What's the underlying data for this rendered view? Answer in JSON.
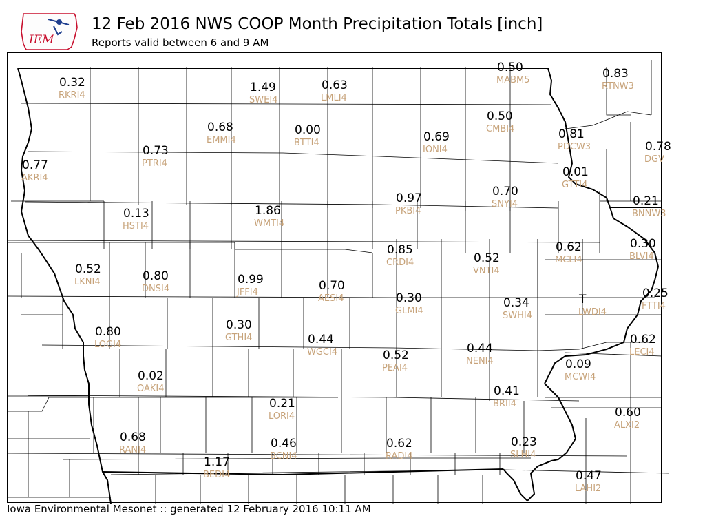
{
  "header": {
    "logo_text": "IEM",
    "title": "12 Feb 2016 NWS COOP Month Precipitation Totals [inch]",
    "subtitle": "Reports valid between 6 and 9 AM"
  },
  "footer": {
    "text": "Iowa Environmental Mesonet :: generated 12 February 2016 10:11 AM"
  },
  "colors": {
    "value_text": "#000000",
    "station_id_text": "#c7a37a",
    "county_lines": "#000000",
    "logo_red": "#c8102e",
    "logo_blue": "#1f3f8f"
  },
  "stations": [
    {
      "id": "RKRI4",
      "value": "0.32"
    },
    {
      "id": "SWEI4",
      "value": "1.49"
    },
    {
      "id": "LMLI4",
      "value": "0.63"
    },
    {
      "id": "MABM5",
      "value": "0.50"
    },
    {
      "id": "RTNW3",
      "value": "0.83"
    },
    {
      "id": "CMBI4",
      "value": "0.50"
    },
    {
      "id": "EMMI4",
      "value": "0.68"
    },
    {
      "id": "BTTI4",
      "value": "0.00"
    },
    {
      "id": "IONI4",
      "value": "0.69"
    },
    {
      "id": "PDCW3",
      "value": "0.81"
    },
    {
      "id": "DGV",
      "value": "0.78"
    },
    {
      "id": "PTRI4",
      "value": "0.73"
    },
    {
      "id": "AKRI4",
      "value": "0.77"
    },
    {
      "id": "GTTI4",
      "value": "0.01"
    },
    {
      "id": "PKBI4",
      "value": "0.97"
    },
    {
      "id": "SNYI4",
      "value": "0.70"
    },
    {
      "id": "BNNW3",
      "value": "0.21"
    },
    {
      "id": "HSTI4",
      "value": "0.13"
    },
    {
      "id": "WMTI4",
      "value": "1.86"
    },
    {
      "id": "CRDI4",
      "value": "0.85"
    },
    {
      "id": "MCLI4",
      "value": "0.62"
    },
    {
      "id": "BLVI4",
      "value": "0.30"
    },
    {
      "id": "VNTI4",
      "value": "0.52"
    },
    {
      "id": "LKNI4",
      "value": "0.52"
    },
    {
      "id": "DNSI4",
      "value": "0.80"
    },
    {
      "id": "JFFI4",
      "value": "0.99"
    },
    {
      "id": "AESI4",
      "value": "0.70"
    },
    {
      "id": "FTTI4",
      "value": "0.25"
    },
    {
      "id": "GLMI4",
      "value": "0.30"
    },
    {
      "id": "SWHI4",
      "value": "0.34"
    },
    {
      "id": "LWDI4",
      "value": "T"
    },
    {
      "id": "LOGI4",
      "value": "0.80"
    },
    {
      "id": "GTHI4",
      "value": "0.30"
    },
    {
      "id": "WGCI4",
      "value": "0.44"
    },
    {
      "id": "LECI4",
      "value": "0.62"
    },
    {
      "id": "NENI4",
      "value": "0.44"
    },
    {
      "id": "PEAI4",
      "value": "0.52"
    },
    {
      "id": "MCWI4",
      "value": "0.09"
    },
    {
      "id": "OAKI4",
      "value": "0.02"
    },
    {
      "id": "BRII4",
      "value": "0.41"
    },
    {
      "id": "LORI4",
      "value": "0.21"
    },
    {
      "id": "ALXI2",
      "value": "0.60"
    },
    {
      "id": "RANI4",
      "value": "0.68"
    },
    {
      "id": "BCNI4",
      "value": "0.46"
    },
    {
      "id": "RADI4",
      "value": "0.62"
    },
    {
      "id": "SLHI4",
      "value": "0.23"
    },
    {
      "id": "BEDI4",
      "value": "1.17"
    },
    {
      "id": "LAHI2",
      "value": "0.47"
    }
  ]
}
